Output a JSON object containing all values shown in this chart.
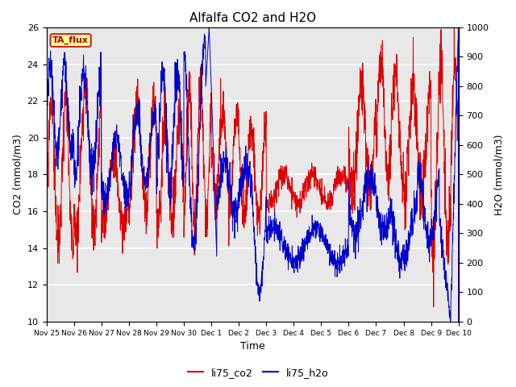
{
  "title": "Alfalfa CO2 and H2O",
  "xlabel": "Time",
  "ylabel_left": "CO2 (mmol/m3)",
  "ylabel_right": "H2O (mmol/m3)",
  "ylim_left": [
    10,
    26
  ],
  "ylim_right": [
    0,
    1000
  ],
  "yticks_left": [
    10,
    12,
    14,
    16,
    18,
    20,
    22,
    24,
    26
  ],
  "yticks_right": [
    0,
    100,
    200,
    300,
    400,
    500,
    600,
    700,
    800,
    900,
    1000
  ],
  "color_co2": "#dd0000",
  "color_h2o": "#0000cc",
  "legend_co2": "li75_co2",
  "legend_h2o": "li75_h2o",
  "tag_text": "TA_flux",
  "tag_bg": "#ffff99",
  "tag_border": "#cc0000",
  "background_color": "#ffffff",
  "plot_bg": "#e8e8e8",
  "grid_color": "#ffffff",
  "title_fontsize": 11,
  "tick_labels": [
    "Nov 25",
    "Nov 26",
    "Nov 27",
    "Nov 28",
    "Nov 29",
    "Nov 30",
    "Dec 1",
    "Dec 2",
    "Dec 3",
    "Dec 4",
    "Dec 5",
    "Dec 6",
    "Dec 7",
    "Dec 8",
    "Dec 9",
    "Dec 10"
  ]
}
